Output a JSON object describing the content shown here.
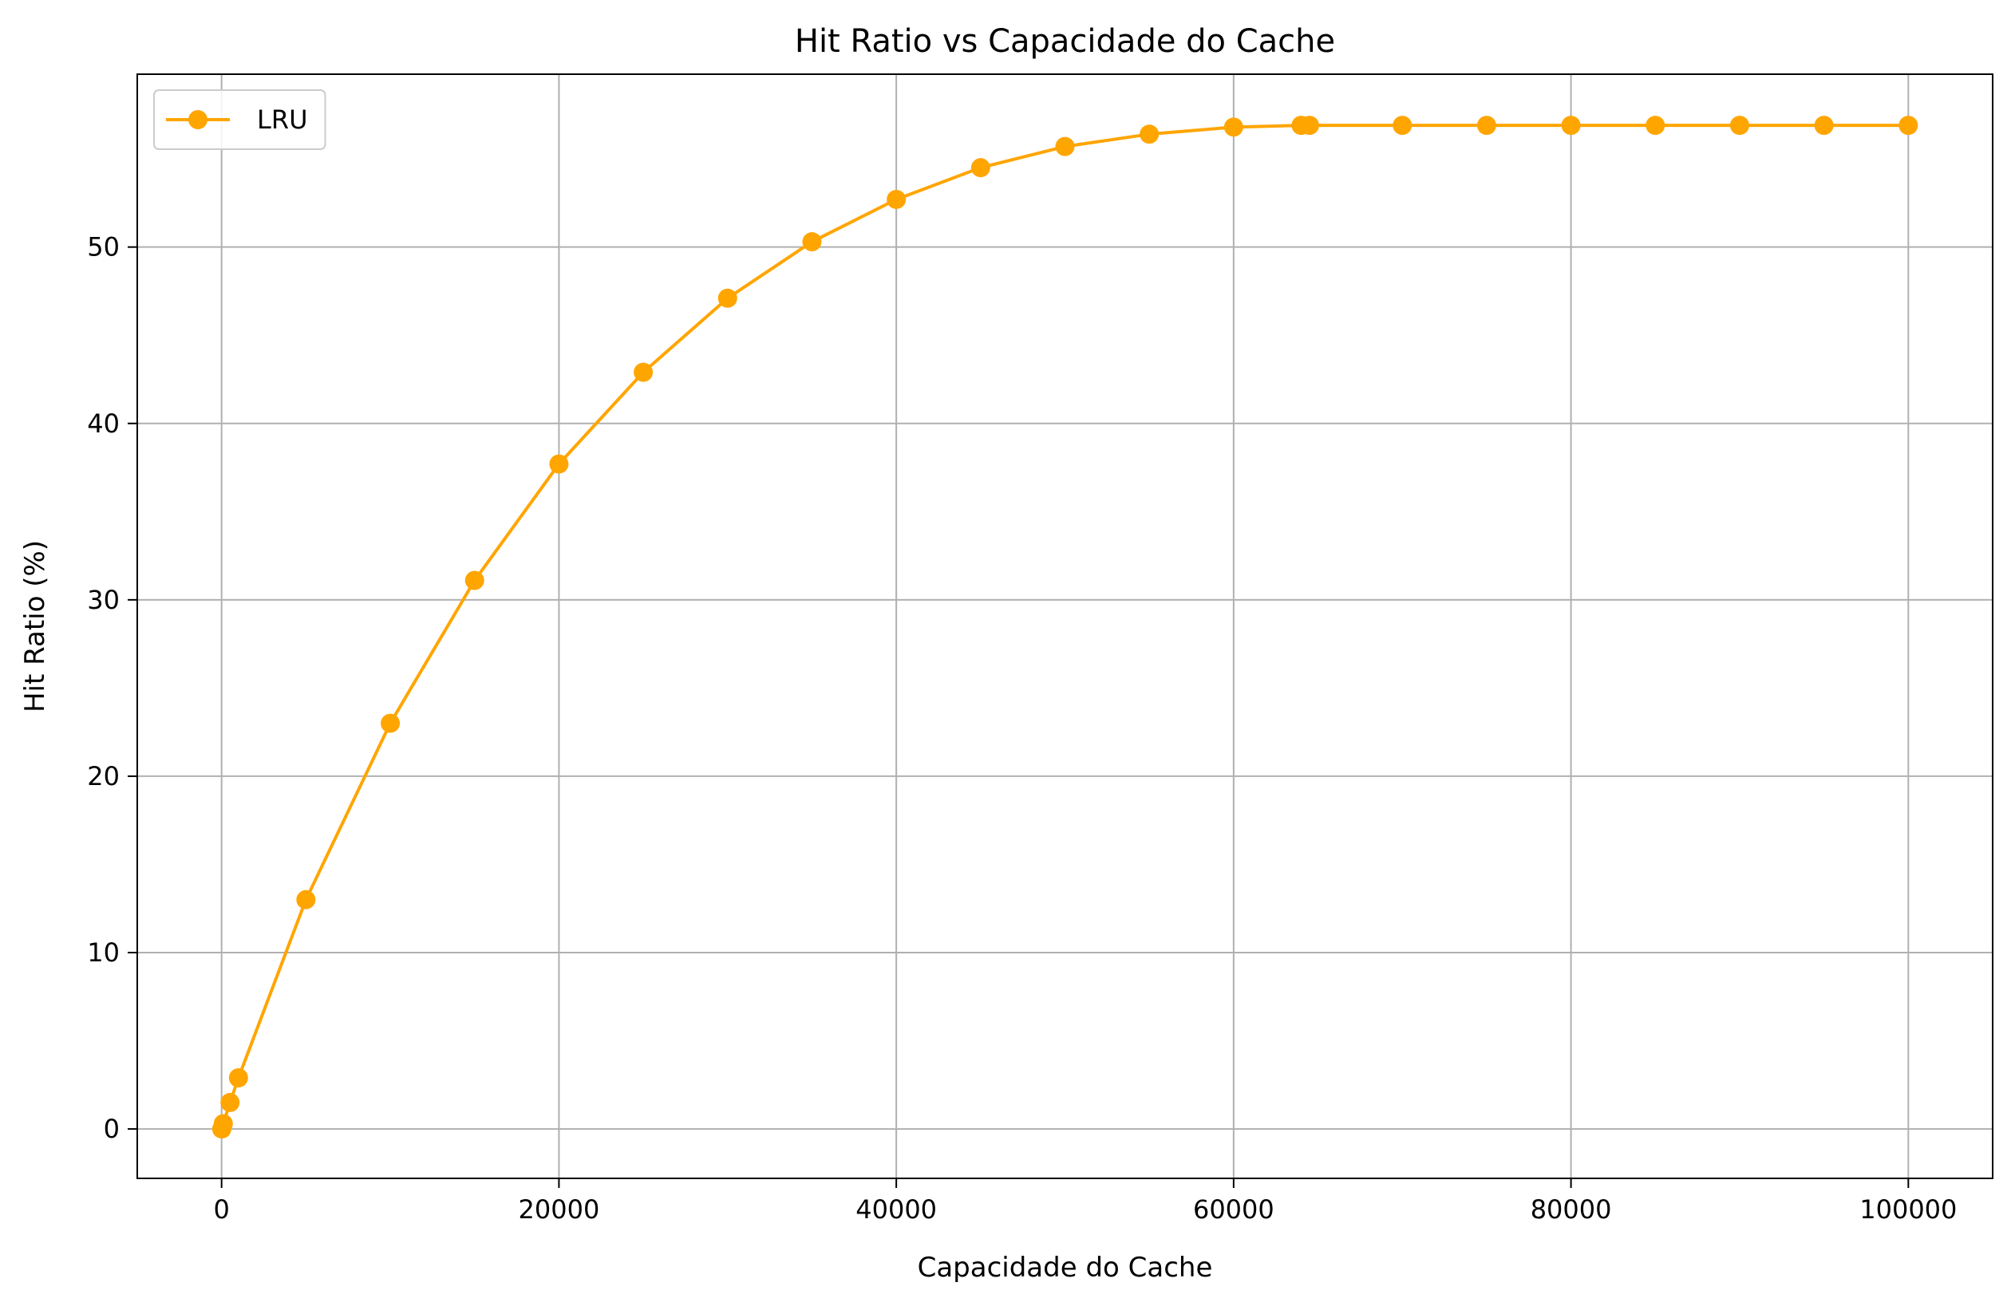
{
  "chart_data": {
    "type": "line",
    "title": "Hit Ratio vs Capacidade do Cache",
    "xlabel": "Capacidade do Cache",
    "ylabel": "Hit Ratio (%)",
    "xlim": [
      -5000,
      105000
    ],
    "ylim": [
      -2.8,
      59.8
    ],
    "x_ticks": [
      0,
      20000,
      40000,
      60000,
      80000,
      100000
    ],
    "x_tick_labels": [
      "0",
      "20000",
      "40000",
      "60000",
      "80000",
      "100000"
    ],
    "y_ticks": [
      0,
      10,
      20,
      30,
      40,
      50
    ],
    "y_tick_labels": [
      "0",
      "10",
      "20",
      "30",
      "40",
      "50"
    ],
    "grid": true,
    "legend_position": "top-left",
    "series": [
      {
        "name": "LRU",
        "color": "#ffa500",
        "marker": "circle",
        "x": [
          10,
          100,
          500,
          1000,
          5000,
          10000,
          15000,
          20000,
          25000,
          30000,
          35000,
          40000,
          45000,
          50000,
          55000,
          60000,
          64000,
          64500,
          70000,
          75000,
          80000,
          85000,
          90000,
          95000,
          100000
        ],
        "y": [
          0.0,
          0.3,
          1.5,
          2.9,
          13.0,
          23.0,
          31.1,
          37.7,
          42.9,
          47.1,
          50.3,
          52.7,
          54.5,
          55.7,
          56.4,
          56.8,
          56.9,
          56.9,
          56.9,
          56.9,
          56.9,
          56.9,
          56.9,
          56.9,
          56.9
        ]
      }
    ]
  }
}
